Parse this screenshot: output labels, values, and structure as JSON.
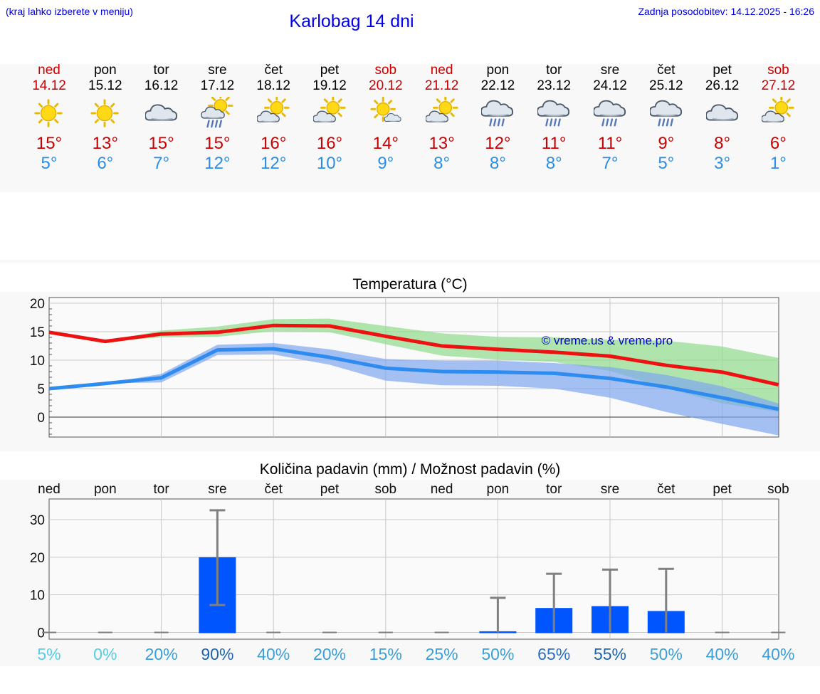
{
  "header": {
    "hint": "(kraj lahko izberete v meniju)",
    "title": "Karlobag 14 dni",
    "updated": "Zadnja posodobitev: 14.12.2025 - 16:26"
  },
  "colors": {
    "weekend": "#cc0000",
    "tmax": "#cc0000",
    "tmin": "#2a8ee8",
    "max_line": "#ee1111",
    "min_line": "#2e8cf0",
    "max_band": "#8edb8a",
    "min_band": "#7fa6f0",
    "bar": "#0055ff"
  },
  "days": [
    {
      "name": "ned",
      "date": "14.12",
      "weekend": true,
      "icon": "sun-icon",
      "tmax": "15°",
      "tmin": "5°"
    },
    {
      "name": "pon",
      "date": "15.12",
      "weekend": false,
      "icon": "sun-icon",
      "tmax": "13°",
      "tmin": "6°"
    },
    {
      "name": "tor",
      "date": "16.12",
      "weekend": false,
      "icon": "cloud-icon",
      "tmax": "15°",
      "tmin": "7°"
    },
    {
      "name": "sre",
      "date": "17.12",
      "weekend": false,
      "icon": "sun-cloud-rain-icon",
      "tmax": "15°",
      "tmin": "12°"
    },
    {
      "name": "čet",
      "date": "18.12",
      "weekend": false,
      "icon": "sun-cloud-icon",
      "tmax": "16°",
      "tmin": "12°"
    },
    {
      "name": "pet",
      "date": "19.12",
      "weekend": false,
      "icon": "sun-cloud-icon",
      "tmax": "16°",
      "tmin": "10°"
    },
    {
      "name": "sob",
      "date": "20.12",
      "weekend": true,
      "icon": "sun-small-cloud-icon",
      "tmax": "14°",
      "tmin": "9°"
    },
    {
      "name": "ned",
      "date": "21.12",
      "weekend": true,
      "icon": "sun-cloud-icon",
      "tmax": "13°",
      "tmin": "8°"
    },
    {
      "name": "pon",
      "date": "22.12",
      "weekend": false,
      "icon": "cloud-rain-icon",
      "tmax": "12°",
      "tmin": "8°"
    },
    {
      "name": "tor",
      "date": "23.12",
      "weekend": false,
      "icon": "cloud-rain-icon",
      "tmax": "11°",
      "tmin": "8°"
    },
    {
      "name": "sre",
      "date": "24.12",
      "weekend": false,
      "icon": "cloud-rain-icon",
      "tmax": "11°",
      "tmin": "7°"
    },
    {
      "name": "čet",
      "date": "25.12",
      "weekend": false,
      "icon": "cloud-rain-icon",
      "tmax": "9°",
      "tmin": "5°"
    },
    {
      "name": "pet",
      "date": "26.12",
      "weekend": false,
      "icon": "cloud-icon",
      "tmax": "8°",
      "tmin": "3°"
    },
    {
      "name": "sob",
      "date": "27.12",
      "weekend": true,
      "icon": "sun-cloud-icon",
      "tmax": "6°",
      "tmin": "1°"
    }
  ],
  "chart_data": [
    {
      "type": "line",
      "title": "Temperatura (°C)",
      "watermark": "© vreme.us & vreme.pro",
      "ylim": [
        -3.5,
        21
      ],
      "yticks": [
        0,
        5,
        10,
        15,
        20
      ],
      "x": [
        0,
        1,
        2,
        3,
        4,
        5,
        6,
        7,
        8,
        9,
        10,
        11,
        12,
        13
      ],
      "series": [
        {
          "name": "max",
          "values": [
            14.9,
            13.3,
            14.6,
            14.9,
            16.1,
            16.0,
            14.2,
            12.5,
            11.9,
            11.4,
            10.7,
            9.1,
            7.9,
            5.7
          ]
        },
        {
          "name": "min",
          "values": [
            5.0,
            5.9,
            6.9,
            11.8,
            12.0,
            10.5,
            8.6,
            8.0,
            7.9,
            7.7,
            6.8,
            5.3,
            3.4,
            1.4
          ]
        },
        {
          "name": "max_range",
          "low": [
            14.9,
            13.3,
            14.0,
            14.1,
            15.1,
            14.9,
            12.8,
            10.8,
            10.1,
            9.7,
            8.1,
            5.1,
            2.4,
            0.9
          ],
          "high": [
            14.9,
            13.3,
            15.2,
            15.9,
            17.2,
            17.3,
            16.0,
            14.7,
            14.1,
            14.0,
            13.6,
            13.4,
            12.4,
            10.4
          ]
        },
        {
          "name": "min_range",
          "low": [
            5.0,
            5.9,
            6.1,
            10.9,
            11.0,
            9.2,
            6.4,
            5.6,
            5.5,
            5.0,
            3.4,
            0.9,
            -1.2,
            -3.2
          ],
          "high": [
            5.0,
            5.9,
            7.6,
            12.7,
            13.0,
            11.9,
            10.2,
            9.9,
            9.9,
            9.5,
            8.8,
            7.4,
            5.4,
            2.4
          ]
        }
      ]
    },
    {
      "type": "bar",
      "title": "Količina padavin (mm) / Možnost padavin (%)",
      "categories": [
        "ned",
        "pon",
        "tor",
        "sre",
        "čet",
        "pet",
        "sob",
        "ned",
        "pon",
        "tor",
        "sre",
        "čet",
        "pet",
        "sob"
      ],
      "ylim": [
        -1.8,
        35.5
      ],
      "yticks": [
        0,
        10,
        20,
        30
      ],
      "values": [
        0,
        0,
        0,
        20.0,
        0,
        0,
        0,
        0,
        0.3,
        6.5,
        7.0,
        5.7,
        0,
        0
      ],
      "error_high": [
        0,
        0,
        0,
        32.5,
        0,
        0,
        0,
        0,
        9.2,
        15.6,
        16.7,
        16.9,
        0,
        0
      ],
      "error_low": [
        0,
        0,
        0,
        7.3,
        0,
        0,
        0,
        0,
        0,
        0,
        0,
        0,
        0,
        0
      ],
      "probability": [
        "5%",
        "0%",
        "20%",
        "90%",
        "40%",
        "20%",
        "15%",
        "25%",
        "50%",
        "65%",
        "55%",
        "50%",
        "40%",
        "40%"
      ],
      "probability_colors": [
        "#55cce6",
        "#55cce6",
        "#3a9fd6",
        "#1e63b0",
        "#3a9fd6",
        "#3a9fd6",
        "#3a9fd6",
        "#3a9fd6",
        "#3a9fd6",
        "#2a6ec4",
        "#1e63b0",
        "#3a9fd6",
        "#3a9fd6",
        "#3a9fd6"
      ]
    }
  ]
}
